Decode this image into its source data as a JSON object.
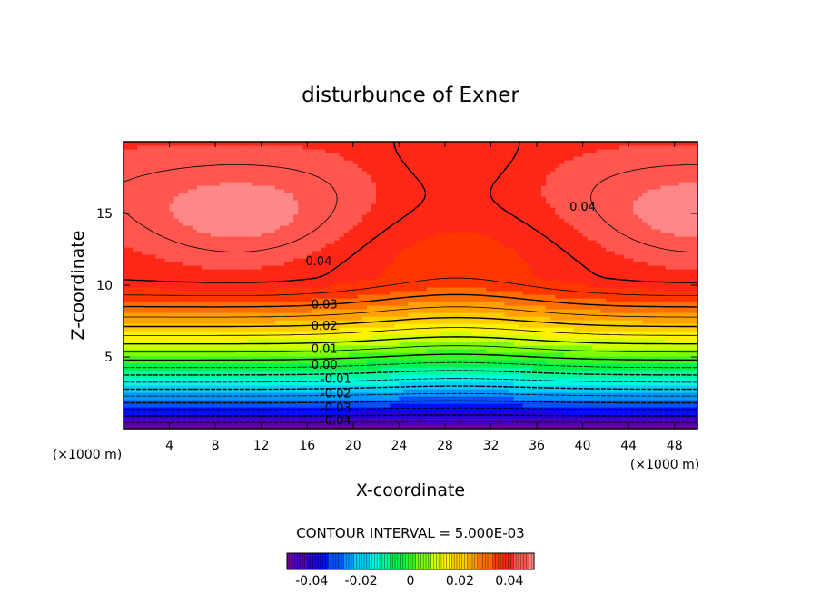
{
  "chart_data": {
    "type": "heatmap",
    "subtype": "filled-contour",
    "title": "disturbunce of Exner",
    "xlabel": "X-coordinate",
    "ylabel": "Z-coordinate",
    "x_unit": "(×1000 m)",
    "z_unit": "(×1000 m)",
    "xlim": [
      0,
      50
    ],
    "ylim": [
      0,
      20
    ],
    "x_ticks": [
      4,
      8,
      12,
      16,
      20,
      24,
      28,
      32,
      36,
      40,
      44,
      48
    ],
    "y_ticks": [
      5,
      10,
      15
    ],
    "contour_interval_text": "CONTOUR INTERVAL = 5.000E-03",
    "contour_interval": 0.005,
    "contour_labels": [
      {
        "text": "0.04",
        "x": 17,
        "z": 11.7
      },
      {
        "text": "0.04",
        "x": 40,
        "z": 15.5
      },
      {
        "text": "0.03",
        "x": 17.5,
        "z": 8.7
      },
      {
        "text": "0.02",
        "x": 17.5,
        "z": 7.2
      },
      {
        "text": "0.01",
        "x": 17.5,
        "z": 5.6
      },
      {
        "text": "0.00",
        "x": 17.5,
        "z": 4.5
      },
      {
        "text": "-0.01",
        "x": 18.5,
        "z": 3.5
      },
      {
        "text": "-0.02",
        "x": 18.5,
        "z": 2.5
      },
      {
        "text": "-0.03",
        "x": 18.5,
        "z": 1.5
      },
      {
        "text": "-0.04",
        "x": 18.5,
        "z": 0.6
      }
    ],
    "colorbar": {
      "min": -0.05,
      "max": 0.05,
      "tick_values": [
        -0.04,
        -0.02,
        0,
        0.02,
        0.04
      ],
      "tick_labels": [
        "-0.04",
        "-0.02",
        "0",
        "0.02",
        "0.04"
      ]
    },
    "field_model": {
      "bottom_value": -0.05,
      "plateau_value": 0.04,
      "trough_center_x": 29,
      "trough_amplitude": 0.005,
      "max_lobes": [
        {
          "x": 10,
          "z": 14.5
        },
        {
          "x": 50,
          "z": 14.5
        }
      ],
      "max_value": 0.047
    }
  }
}
